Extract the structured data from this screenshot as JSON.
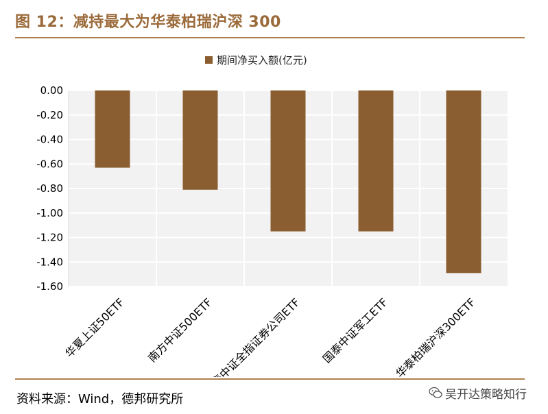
{
  "header": {
    "title": "图 12：减持最大为华泰柏瑞沪深 300"
  },
  "footer": {
    "source": "资料来源：Wind，德邦研究所",
    "watermark": "吴开达策略知行"
  },
  "colors": {
    "bar": "#8B5E31",
    "title": "#9B6A3A",
    "rule": "#B08050",
    "plot_bg": "#F2F2F2"
  },
  "chart_data": {
    "type": "bar",
    "legend": "期间净买入额(亿元)",
    "legend_position": "top-center",
    "categories": [
      "华夏上证50ETF",
      "南方中证500ETF",
      "国泰中证全指证券公司ETF",
      "国泰中证军工ETF",
      "华泰柏瑞沪深300ETF"
    ],
    "values": [
      -0.63,
      -0.81,
      -1.15,
      -1.15,
      -1.49
    ],
    "ylim": [
      -1.6,
      0.0
    ],
    "yticks": [
      "0.00",
      "-0.20",
      "-0.40",
      "-0.60",
      "-0.80",
      "-1.00",
      "-1.20",
      "-1.40",
      "-1.60"
    ],
    "grid": true
  }
}
